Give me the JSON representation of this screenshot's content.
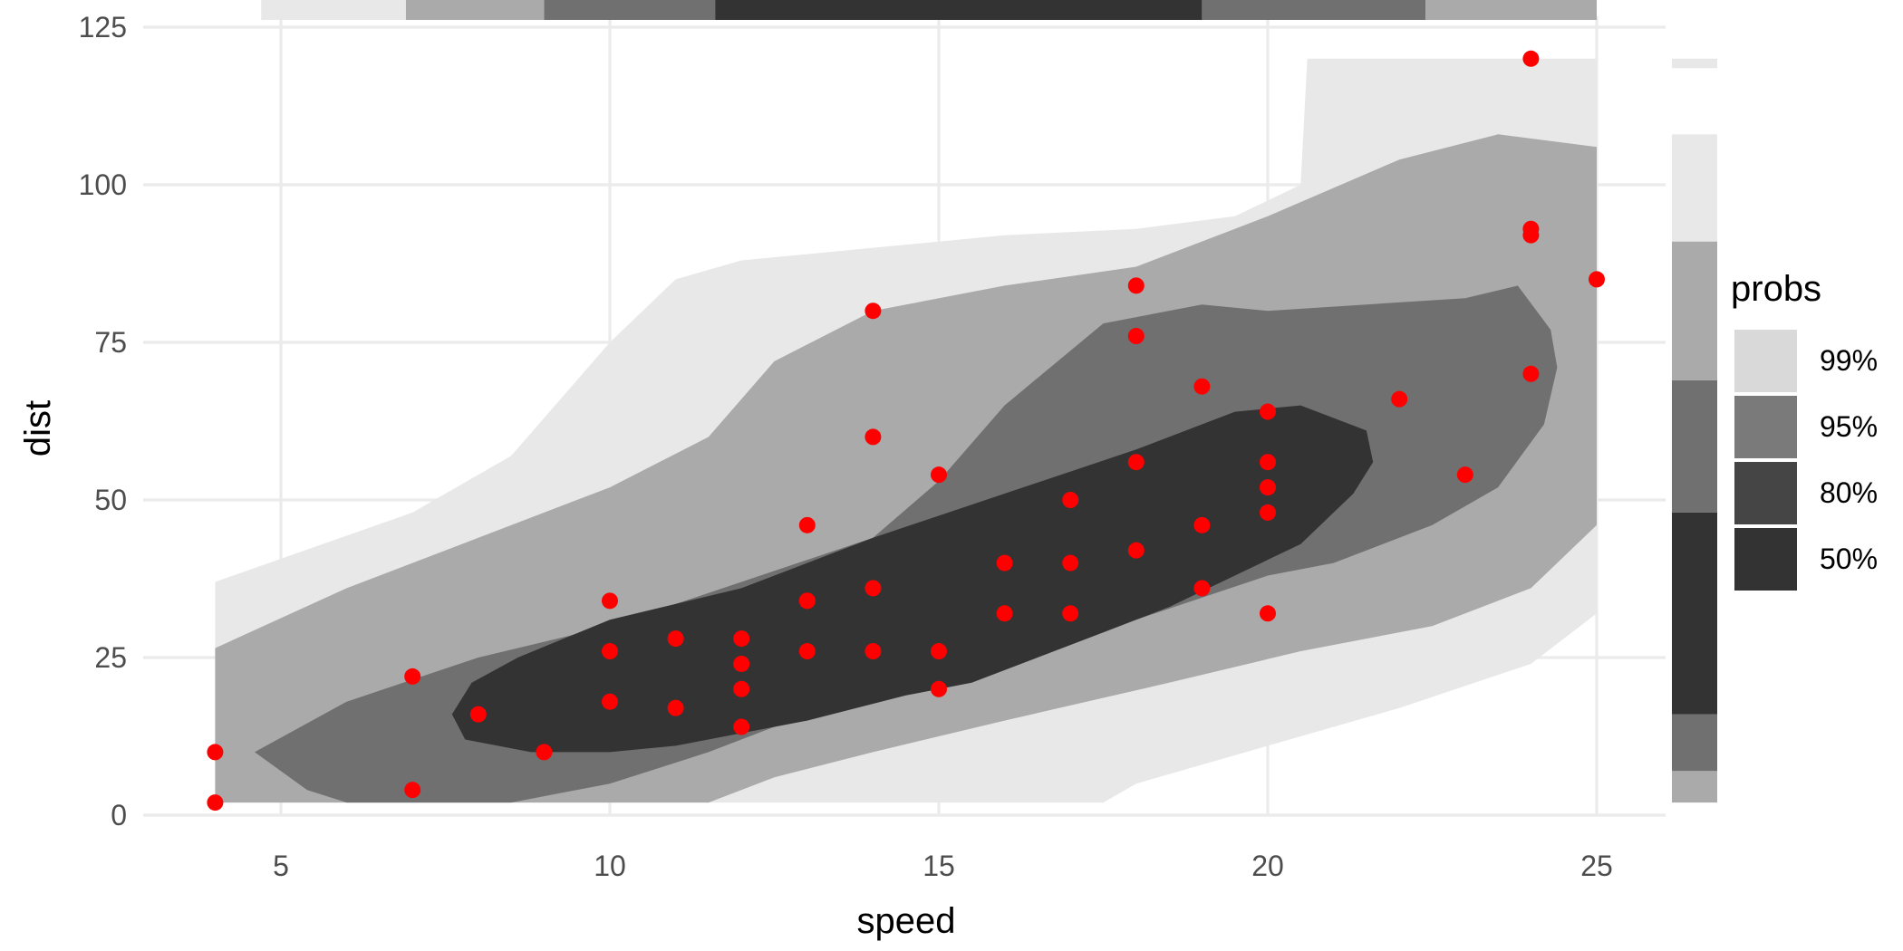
{
  "chart_data": {
    "type": "scatter",
    "xlabel": "speed",
    "ylabel": "dist",
    "xlim": [
      3,
      26
    ],
    "ylim": [
      -3,
      125
    ],
    "x_ticks": [
      5,
      10,
      15,
      20,
      25
    ],
    "y_ticks": [
      0,
      25,
      50,
      75,
      100,
      125
    ],
    "grid": true,
    "point_color": "#ff0000",
    "points": [
      {
        "x": 4,
        "y": 2
      },
      {
        "x": 4,
        "y": 10
      },
      {
        "x": 7,
        "y": 4
      },
      {
        "x": 7,
        "y": 22
      },
      {
        "x": 8,
        "y": 16
      },
      {
        "x": 9,
        "y": 10
      },
      {
        "x": 10,
        "y": 18
      },
      {
        "x": 10,
        "y": 26
      },
      {
        "x": 10,
        "y": 34
      },
      {
        "x": 11,
        "y": 17
      },
      {
        "x": 11,
        "y": 28
      },
      {
        "x": 12,
        "y": 14
      },
      {
        "x": 12,
        "y": 20
      },
      {
        "x": 12,
        "y": 24
      },
      {
        "x": 12,
        "y": 28
      },
      {
        "x": 13,
        "y": 26
      },
      {
        "x": 13,
        "y": 34
      },
      {
        "x": 13,
        "y": 34
      },
      {
        "x": 13,
        "y": 46
      },
      {
        "x": 14,
        "y": 26
      },
      {
        "x": 14,
        "y": 36
      },
      {
        "x": 14,
        "y": 60
      },
      {
        "x": 14,
        "y": 80
      },
      {
        "x": 15,
        "y": 20
      },
      {
        "x": 15,
        "y": 26
      },
      {
        "x": 15,
        "y": 54
      },
      {
        "x": 16,
        "y": 32
      },
      {
        "x": 16,
        "y": 40
      },
      {
        "x": 17,
        "y": 32
      },
      {
        "x": 17,
        "y": 40
      },
      {
        "x": 17,
        "y": 50
      },
      {
        "x": 18,
        "y": 42
      },
      {
        "x": 18,
        "y": 56
      },
      {
        "x": 18,
        "y": 76
      },
      {
        "x": 18,
        "y": 84
      },
      {
        "x": 19,
        "y": 36
      },
      {
        "x": 19,
        "y": 46
      },
      {
        "x": 19,
        "y": 68
      },
      {
        "x": 20,
        "y": 32
      },
      {
        "x": 20,
        "y": 48
      },
      {
        "x": 20,
        "y": 52
      },
      {
        "x": 20,
        "y": 56
      },
      {
        "x": 20,
        "y": 64
      },
      {
        "x": 22,
        "y": 66
      },
      {
        "x": 23,
        "y": 54
      },
      {
        "x": 24,
        "y": 70
      },
      {
        "x": 24,
        "y": 92
      },
      {
        "x": 24,
        "y": 93
      },
      {
        "x": 24,
        "y": 120
      },
      {
        "x": 25,
        "y": 85
      }
    ],
    "density_regions": [
      {
        "prob": "99%",
        "color": "#e8e8e8",
        "polygon": [
          [
            4,
            2
          ],
          [
            4,
            37
          ],
          [
            7,
            48
          ],
          [
            8.5,
            57
          ],
          [
            10,
            75
          ],
          [
            11,
            85
          ],
          [
            12,
            88
          ],
          [
            14,
            90
          ],
          [
            16,
            92
          ],
          [
            18,
            93
          ],
          [
            19.5,
            95
          ],
          [
            20.5,
            100
          ],
          [
            20.6,
            120
          ],
          [
            25,
            120
          ],
          [
            25,
            32
          ],
          [
            24,
            24
          ],
          [
            22,
            17
          ],
          [
            20,
            11
          ],
          [
            18,
            5
          ],
          [
            17.5,
            2
          ]
        ]
      },
      {
        "prob": "95%",
        "color": "#aaaaaa",
        "polygon": [
          [
            4,
            2
          ],
          [
            4,
            26.5
          ],
          [
            6,
            36
          ],
          [
            8,
            44
          ],
          [
            10,
            52
          ],
          [
            11.5,
            60
          ],
          [
            12.5,
            72
          ],
          [
            14,
            80
          ],
          [
            16,
            84
          ],
          [
            18,
            87
          ],
          [
            20,
            95
          ],
          [
            22,
            104
          ],
          [
            23.5,
            108
          ],
          [
            25,
            106
          ],
          [
            25,
            46
          ],
          [
            24,
            36
          ],
          [
            22.5,
            30
          ],
          [
            20.5,
            26
          ],
          [
            18.5,
            21
          ],
          [
            16,
            15
          ],
          [
            14,
            10
          ],
          [
            12.5,
            6
          ],
          [
            11.5,
            2
          ]
        ]
      },
      {
        "prob": "80%",
        "color": "#707070",
        "polygon": [
          [
            6,
            2
          ],
          [
            5.4,
            4
          ],
          [
            4.6,
            10
          ],
          [
            6,
            18
          ],
          [
            8,
            25
          ],
          [
            10,
            30
          ],
          [
            12,
            37
          ],
          [
            14,
            44
          ],
          [
            15,
            53
          ],
          [
            16,
            65
          ],
          [
            17.5,
            78
          ],
          [
            19,
            81
          ],
          [
            20,
            80
          ],
          [
            21.5,
            81
          ],
          [
            23,
            82
          ],
          [
            23.8,
            84
          ],
          [
            24.3,
            77
          ],
          [
            24.4,
            71
          ],
          [
            24.2,
            62
          ],
          [
            23.5,
            52
          ],
          [
            22.5,
            46
          ],
          [
            21,
            40
          ],
          [
            20,
            38
          ],
          [
            18,
            31
          ],
          [
            16,
            25
          ],
          [
            14.5,
            21
          ],
          [
            13,
            16
          ],
          [
            11.5,
            10
          ],
          [
            10,
            5
          ],
          [
            8.5,
            2
          ]
        ]
      },
      {
        "prob": "50%",
        "color": "#333333",
        "polygon": [
          [
            7.8,
            12
          ],
          [
            7.6,
            16
          ],
          [
            7.9,
            21
          ],
          [
            8.6,
            25
          ],
          [
            10,
            31
          ],
          [
            12,
            36
          ],
          [
            14,
            44
          ],
          [
            16,
            51
          ],
          [
            18,
            58
          ],
          [
            19.5,
            64
          ],
          [
            20.5,
            65
          ],
          [
            21,
            63
          ],
          [
            21.5,
            61
          ],
          [
            21.6,
            56
          ],
          [
            21.3,
            51
          ],
          [
            20.5,
            43
          ],
          [
            19.5,
            38
          ],
          [
            18.5,
            33
          ],
          [
            17.5,
            29
          ],
          [
            16.5,
            25
          ],
          [
            15.5,
            21
          ],
          [
            14.5,
            19
          ],
          [
            13,
            15
          ],
          [
            12,
            13
          ],
          [
            11,
            11
          ],
          [
            10,
            10
          ],
          [
            8.8,
            10
          ]
        ]
      }
    ],
    "x_marginal": [
      {
        "range": [
          4.7,
          6.9
        ],
        "prob": "99%",
        "color": "#e8e8e8"
      },
      {
        "range": [
          6.9,
          9.0
        ],
        "prob": "95%",
        "color": "#aaaaaa"
      },
      {
        "range": [
          9.0,
          11.6
        ],
        "prob": "80%",
        "color": "#707070"
      },
      {
        "range": [
          11.6,
          19.0
        ],
        "prob": "50%",
        "color": "#333333"
      },
      {
        "range": [
          19.0,
          22.4
        ],
        "prob": "80%",
        "color": "#707070"
      },
      {
        "range": [
          22.4,
          25.0
        ],
        "prob": "95%",
        "color": "#aaaaaa"
      }
    ],
    "y_marginal": [
      {
        "range": [
          2,
          7
        ],
        "prob": "95%",
        "color": "#aaaaaa"
      },
      {
        "range": [
          7,
          16
        ],
        "prob": "80%",
        "color": "#707070"
      },
      {
        "range": [
          16,
          48
        ],
        "prob": "50%",
        "color": "#333333"
      },
      {
        "range": [
          48,
          69
        ],
        "prob": "80%",
        "color": "#707070"
      },
      {
        "range": [
          69,
          91
        ],
        "prob": "95%",
        "color": "#aaaaaa"
      },
      {
        "range": [
          91,
          108
        ],
        "prob": "99%",
        "color": "#e8e8e8"
      },
      {
        "range": [
          118.5,
          120
        ],
        "prob": "99%",
        "color": "#e8e8e8"
      }
    ],
    "legend": {
      "title": "probs",
      "position": "right",
      "entries": [
        {
          "label": "99%",
          "color": "#d9d9d9"
        },
        {
          "label": "95%",
          "color": "#7a7a7a"
        },
        {
          "label": "80%",
          "color": "#454545"
        },
        {
          "label": "50%",
          "color": "#333333"
        }
      ]
    }
  }
}
